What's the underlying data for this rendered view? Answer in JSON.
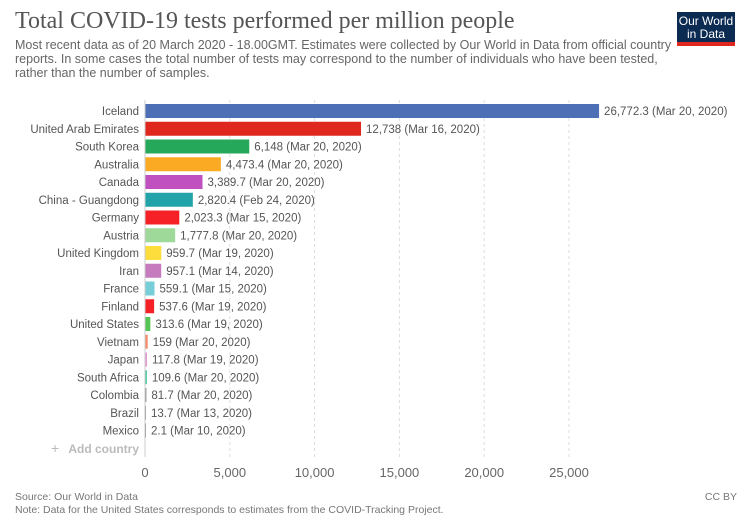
{
  "header": {
    "title": "Total COVID-19 tests performed per million people",
    "subtitle": "Most recent data as of 20 March 2020 - 18.00GMT. Estimates were collected by Our World in Data from official country reports. In some cases the total number of tests may correspond to the number of individuals who have been tested, rather than the number of samples.",
    "logo_line1": "Our World",
    "logo_line2": "in Data"
  },
  "add_country_label": "Add country",
  "footer": {
    "source": "Source: Our World in Data",
    "note": "Note: Data for the United States corresponds to estimates from the COVID-Tracking Project.",
    "license": "CC BY"
  },
  "chart_data": {
    "type": "bar",
    "orientation": "horizontal",
    "title": "Total COVID-19 tests performed per million people",
    "xlabel": "",
    "ylabel": "",
    "xlim": [
      0,
      27000
    ],
    "xticks": [
      0,
      5000,
      10000,
      15000,
      20000,
      25000
    ],
    "xtick_labels": [
      "0",
      "5,000",
      "10,000",
      "15,000",
      "20,000",
      "25,000"
    ],
    "grid": "vertical dashed",
    "categories": [
      "Iceland",
      "United Arab Emirates",
      "South Korea",
      "Australia",
      "Canada",
      "China - Guangdong",
      "Germany",
      "Austria",
      "United Kingdom",
      "Iran",
      "France",
      "Finland",
      "United States",
      "Vietnam",
      "Japan",
      "South Africa",
      "Colombia",
      "Brazil",
      "Mexico"
    ],
    "values": [
      26772.3,
      12738,
      6148,
      4473.4,
      3389.7,
      2820.4,
      2023.3,
      1777.8,
      959.7,
      957.1,
      559.1,
      537.6,
      313.6,
      159,
      117.8,
      109.6,
      81.7,
      13.7,
      2.1
    ],
    "value_labels": [
      "26,772.3 (Mar 20, 2020)",
      "12,738 (Mar 16, 2020)",
      "6,148 (Mar 20, 2020)",
      "4,473.4 (Mar 20, 2020)",
      "3,389.7 (Mar 20, 2020)",
      "2,820.4 (Feb 24, 2020)",
      "2,023.3 (Mar 15, 2020)",
      "1,777.8 (Mar 20, 2020)",
      "959.7 (Mar 19, 2020)",
      "957.1 (Mar 14, 2020)",
      "559.1 (Mar 15, 2020)",
      "537.6 (Mar 19, 2020)",
      "313.6 (Mar 19, 2020)",
      "159 (Mar 20, 2020)",
      "117.8 (Mar 19, 2020)",
      "109.6 (Mar 20, 2020)",
      "81.7 (Mar 20, 2020)",
      "13.7 (Mar 13, 2020)",
      "2.1 (Mar 10, 2020)"
    ],
    "colors": [
      "#4c6fb6",
      "#e0271e",
      "#26a85a",
      "#faab23",
      "#c04fbf",
      "#22a3a9",
      "#f62127",
      "#9ed99a",
      "#fddd3c",
      "#c57bbd",
      "#76cfd8",
      "#f62127",
      "#54c454",
      "#f58b6b",
      "#e597d3",
      "#46c99a",
      "#888888",
      "#888888",
      "#888888"
    ]
  }
}
